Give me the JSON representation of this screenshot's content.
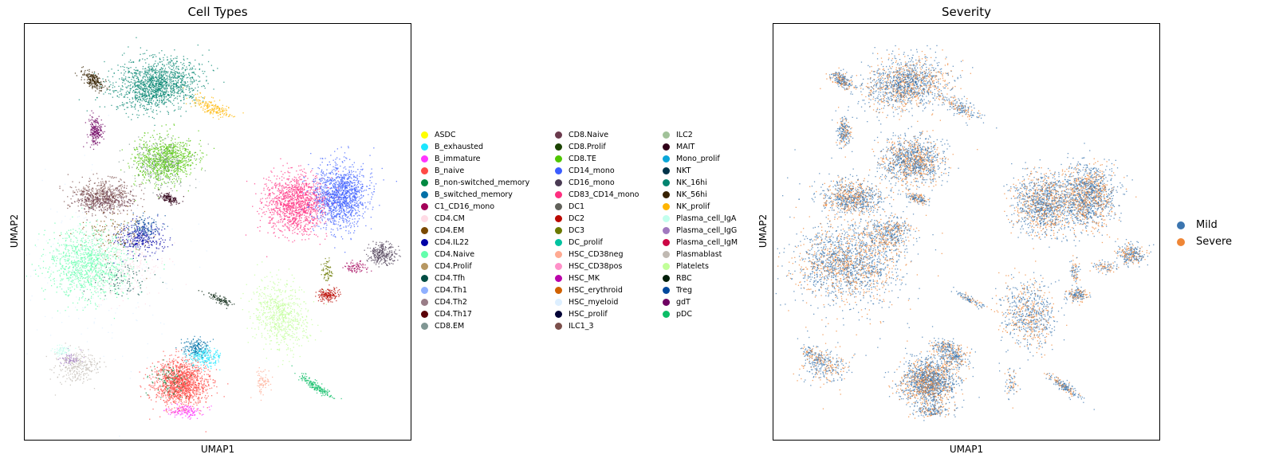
{
  "chart_data": [
    {
      "type": "scatter",
      "title": "Cell Types",
      "xlabel": "UMAP1",
      "ylabel": "UMAP2",
      "xticks": false,
      "yticks": false,
      "legend": "right",
      "legend_columns": 3,
      "categories": [
        {
          "name": "ASDC",
          "color": "#ffff00"
        },
        {
          "name": "B_exhausted",
          "color": "#1ce6ff"
        },
        {
          "name": "B_immature",
          "color": "#ff34ff"
        },
        {
          "name": "B_naive",
          "color": "#ff4a46"
        },
        {
          "name": "B_non-switched_memory",
          "color": "#008941"
        },
        {
          "name": "B_switched_memory",
          "color": "#006fa6"
        },
        {
          "name": "C1_CD16_mono",
          "color": "#a30059"
        },
        {
          "name": "CD4.CM",
          "color": "#ffdbe5"
        },
        {
          "name": "CD4.EM",
          "color": "#7a4900"
        },
        {
          "name": "CD4.IL22",
          "color": "#0000a6"
        },
        {
          "name": "CD4.Naive",
          "color": "#63ffac"
        },
        {
          "name": "CD4.Prolif",
          "color": "#b79762"
        },
        {
          "name": "CD4.Tfh",
          "color": "#004d43"
        },
        {
          "name": "CD4.Th1",
          "color": "#8fb0ff"
        },
        {
          "name": "CD4.Th2",
          "color": "#997d87"
        },
        {
          "name": "CD4.Th17",
          "color": "#5a0007"
        },
        {
          "name": "CD8.EM",
          "color": "#809693"
        },
        {
          "name": "CD8.Naive",
          "color": "#6a3a4c"
        },
        {
          "name": "CD8.Prolif",
          "color": "#1b4400"
        },
        {
          "name": "CD8.TE",
          "color": "#4fc601"
        },
        {
          "name": "CD14_mono",
          "color": "#3b5dff"
        },
        {
          "name": "CD16_mono",
          "color": "#4a3b53"
        },
        {
          "name": "CD83_CD14_mono",
          "color": "#ff2f80"
        },
        {
          "name": "DC1",
          "color": "#61615a"
        },
        {
          "name": "DC2",
          "color": "#ba0900"
        },
        {
          "name": "DC3",
          "color": "#6b7900"
        },
        {
          "name": "DC_prolif",
          "color": "#00c2a0"
        },
        {
          "name": "HSC_CD38neg",
          "color": "#ffaa92"
        },
        {
          "name": "HSC_CD38pos",
          "color": "#ff90c9"
        },
        {
          "name": "HSC_MK",
          "color": "#b903aa"
        },
        {
          "name": "HSC_erythroid",
          "color": "#d16100"
        },
        {
          "name": "HSC_myeloid",
          "color": "#ddefff"
        },
        {
          "name": "HSC_prolif",
          "color": "#000035"
        },
        {
          "name": "ILC1_3",
          "color": "#7b4f4b"
        },
        {
          "name": "ILC2",
          "color": "#a1c299"
        },
        {
          "name": "MAIT",
          "color": "#300018"
        },
        {
          "name": "Mono_prolif",
          "color": "#0aa6d8"
        },
        {
          "name": "NKT",
          "color": "#013349"
        },
        {
          "name": "NK_16hi",
          "color": "#00846f"
        },
        {
          "name": "NK_56hi",
          "color": "#372101"
        },
        {
          "name": "NK_prolif",
          "color": "#ffb500"
        },
        {
          "name": "Plasma_cell_IgA",
          "color": "#c2ffed"
        },
        {
          "name": "Plasma_cell_IgG",
          "color": "#a079bf"
        },
        {
          "name": "Plasma_cell_IgM",
          "color": "#cc0744"
        },
        {
          "name": "Plasmablast",
          "color": "#c0b9b2"
        },
        {
          "name": "Platelets",
          "color": "#c2ff99"
        },
        {
          "name": "RBC",
          "color": "#001e09"
        },
        {
          "name": "Treg",
          "color": "#00489c"
        },
        {
          "name": "gdT",
          "color": "#6f0062"
        },
        {
          "name": "pDC",
          "color": "#0cbd66"
        }
      ]
    },
    {
      "type": "scatter",
      "title": "Severity",
      "xlabel": "UMAP1",
      "ylabel": "UMAP2",
      "xticks": false,
      "yticks": false,
      "legend": "right",
      "categories": [
        {
          "name": "Mild",
          "color": "#3b75af"
        },
        {
          "name": "Severe",
          "color": "#ef8636"
        }
      ]
    }
  ]
}
